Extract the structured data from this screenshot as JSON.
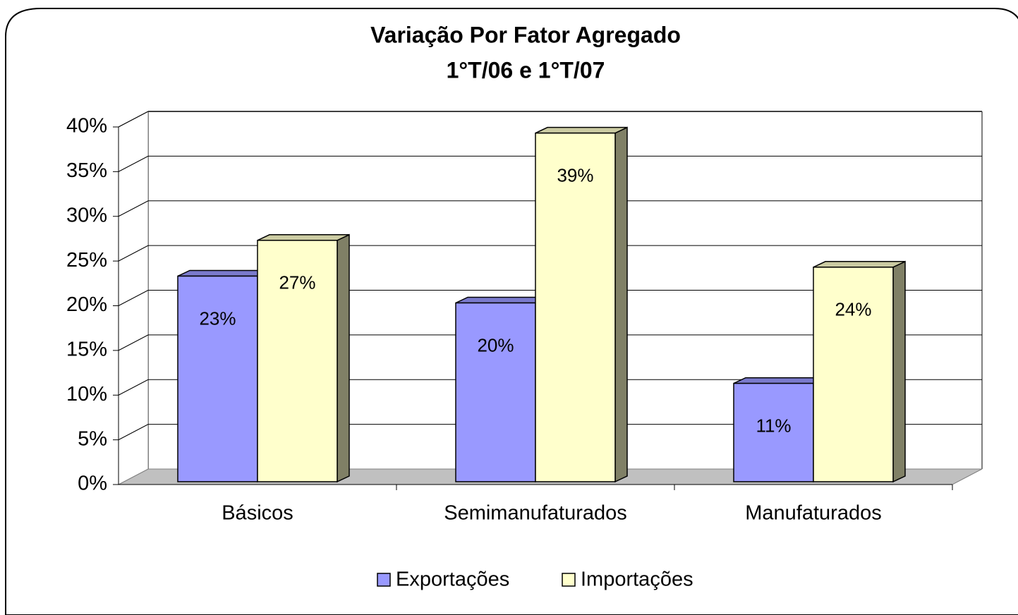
{
  "chart_data": {
    "type": "bar3d",
    "title": "Variação Por Fator Agregado",
    "subtitle": "1°T/06 e 1°T/07",
    "categories": [
      "Básicos",
      "Semimanufaturados",
      "Manufaturados"
    ],
    "series": [
      {
        "name": "Exportações",
        "color": "#9999ff",
        "values": [
          23,
          20,
          11
        ],
        "value_labels": [
          "23%",
          "20%",
          "11%"
        ]
      },
      {
        "name": "Importações",
        "color": "#ffffcc",
        "values": [
          27,
          39,
          24
        ],
        "value_labels": [
          "27%",
          "39%",
          "24%"
        ]
      }
    ],
    "ylim": [
      0,
      40
    ],
    "yticks": [
      {
        "value": 0,
        "label": "0%"
      },
      {
        "value": 5,
        "label": "5%"
      },
      {
        "value": 10,
        "label": "10%"
      },
      {
        "value": 15,
        "label": "15%"
      },
      {
        "value": 20,
        "label": "20%"
      },
      {
        "value": 25,
        "label": "25%"
      },
      {
        "value": 30,
        "label": "30%"
      },
      {
        "value": 35,
        "label": "35%"
      },
      {
        "value": 40,
        "label": "40%"
      }
    ],
    "grid": true,
    "legend": "bottom"
  }
}
